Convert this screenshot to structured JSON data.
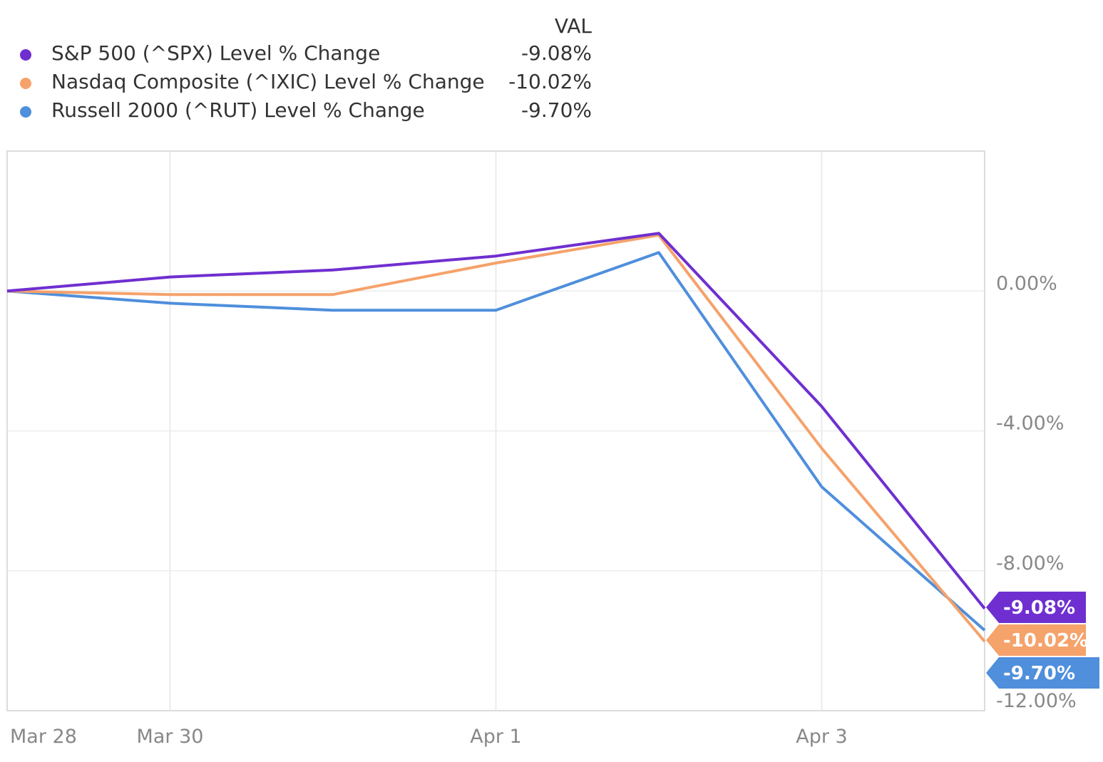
{
  "legend": {
    "header": "VAL",
    "items": [
      {
        "label": "S&P 500 (^SPX) Level % Change",
        "value": "-9.08%",
        "color": "#6f2fd0"
      },
      {
        "label": "Nasdaq Composite (^IXIC) Level % Change",
        "value": "-10.02%",
        "color": "#f5a26b"
      },
      {
        "label": "Russell 2000 (^RUT) Level % Change",
        "value": "-9.70%",
        "color": "#4f8fdc"
      }
    ]
  },
  "chart_data": {
    "type": "line",
    "x": [
      "Mar 28",
      "Mar 30",
      "Mar 31",
      "Apr 1",
      "Apr 2",
      "Apr 3",
      "Apr 4"
    ],
    "xticks": [
      "Mar 28",
      "Mar 30",
      "Apr 1",
      "Apr 3"
    ],
    "yticks": [
      "0.00%",
      "-4.00%",
      "-8.00%",
      "-12.00%"
    ],
    "ylim": [
      -12,
      4
    ],
    "grid": true,
    "series": [
      {
        "name": "S&P 500 (^SPX) Level % Change",
        "color": "#6f2fd0",
        "end_label": "-9.08%",
        "values": [
          0,
          0.4,
          0.6,
          1.0,
          1.65,
          -3.3,
          -9.08
        ]
      },
      {
        "name": "Nasdaq Composite (^IXIC) Level % Change",
        "color": "#f5a26b",
        "end_label": "-10.02%",
        "values": [
          0,
          -0.1,
          -0.1,
          0.8,
          1.6,
          -4.5,
          -10.02
        ]
      },
      {
        "name": "Russell 2000 (^RUT) Level % Change",
        "color": "#4f8fdc",
        "end_label": "-9.70%",
        "values": [
          0,
          -0.35,
          -0.55,
          -0.55,
          1.1,
          -5.6,
          -9.7
        ]
      }
    ]
  }
}
